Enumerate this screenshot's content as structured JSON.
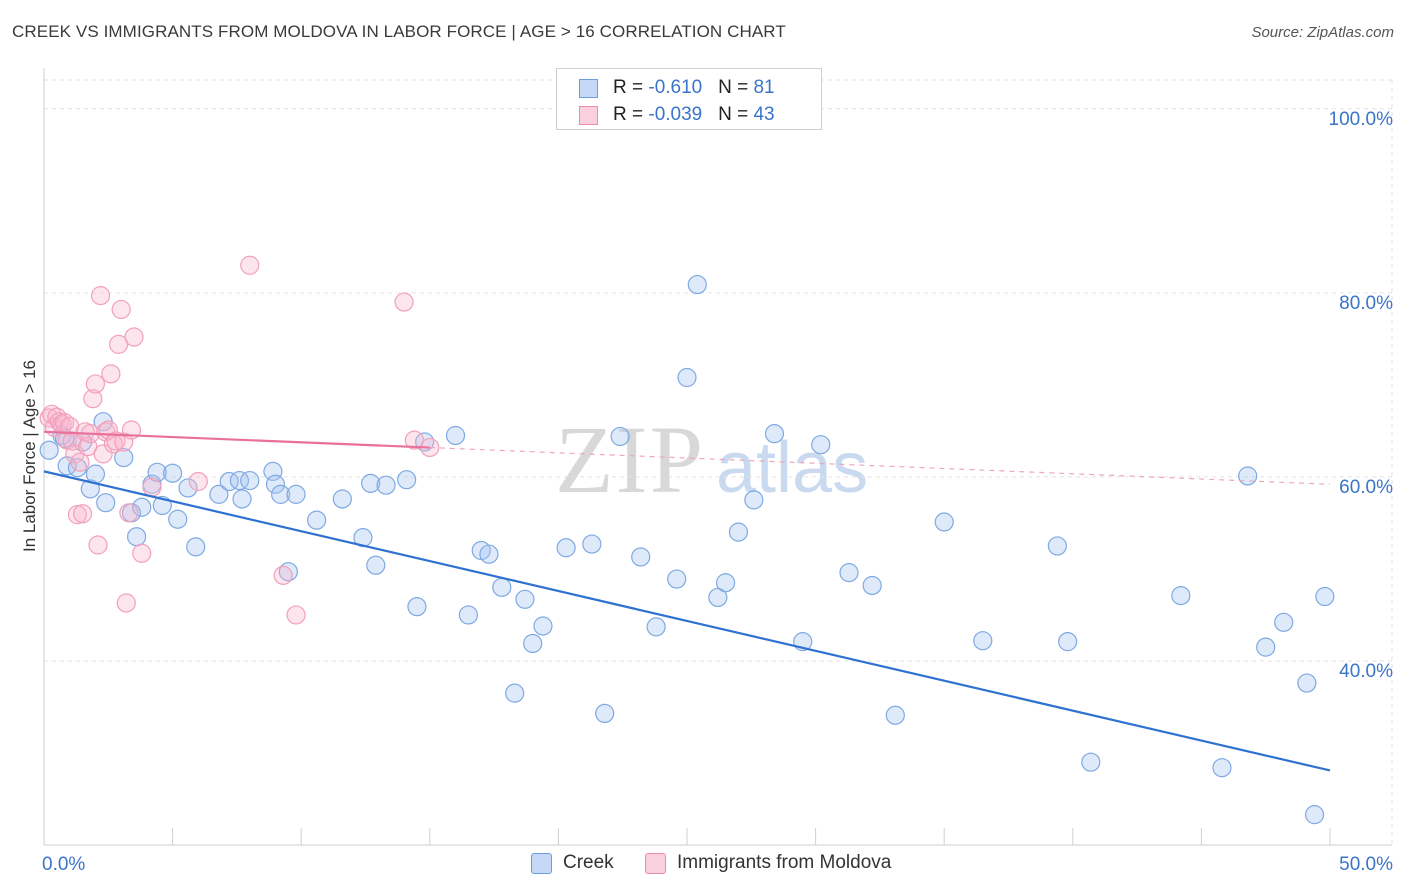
{
  "title": "CREEK VS IMMIGRANTS FROM MOLDOVA IN LABOR FORCE | AGE > 16 CORRELATION CHART",
  "source": "Source: ZipAtlas.com",
  "watermark": {
    "part1": "ZIP",
    "part2": "atlas"
  },
  "legend_top": [
    {
      "r_label": "R = ",
      "r_value": "-0.610",
      "n_label": "N = ",
      "n_value": "81",
      "color": "#6b9de0"
    },
    {
      "r_label": "R = ",
      "r_value": "-0.039",
      "n_label": "N = ",
      "n_value": "43",
      "color": "#f08aab"
    }
  ],
  "legend_bottom": [
    {
      "label": "Creek",
      "color": "#6b9de0"
    },
    {
      "label": "Immigrants from Moldova",
      "color": "#f08aab"
    }
  ],
  "chart_data": {
    "type": "scatter",
    "title": "CREEK VS IMMIGRANTS FROM MOLDOVA IN LABOR FORCE | AGE > 16 CORRELATION CHART",
    "xlabel": "",
    "ylabel": "In Labor Force | Age > 16",
    "xlim": [
      0,
      50
    ],
    "ylim": [
      20,
      104
    ],
    "x_tick_labels": [
      "0.0%",
      "50.0%"
    ],
    "y_ticks": [
      40,
      60,
      80,
      100
    ],
    "y_tick_labels": [
      "40.0%",
      "60.0%",
      "80.0%",
      "100.0%"
    ],
    "grid": true,
    "legend_placement": "top-center and bottom",
    "series": [
      {
        "name": "Creek",
        "color": "#6b9de0",
        "trend": {
          "x": [
            0,
            50
          ],
          "y": [
            60.6,
            28.1
          ],
          "dashed_from": null
        },
        "points": [
          [
            0.2,
            62.9
          ],
          [
            0.7,
            64.5
          ],
          [
            0.8,
            64.2
          ],
          [
            0.9,
            61.2
          ],
          [
            1.3,
            61.0
          ],
          [
            1.5,
            63.8
          ],
          [
            1.8,
            58.7
          ],
          [
            2.0,
            60.3
          ],
          [
            2.3,
            66.0
          ],
          [
            2.4,
            57.2
          ],
          [
            3.1,
            62.1
          ],
          [
            3.4,
            56.1
          ],
          [
            3.6,
            53.5
          ],
          [
            3.8,
            56.7
          ],
          [
            4.2,
            59.2
          ],
          [
            4.4,
            60.5
          ],
          [
            4.6,
            56.9
          ],
          [
            5.0,
            60.4
          ],
          [
            5.2,
            55.4
          ],
          [
            5.6,
            58.8
          ],
          [
            5.9,
            52.4
          ],
          [
            6.8,
            58.1
          ],
          [
            7.2,
            59.5
          ],
          [
            7.6,
            59.6
          ],
          [
            7.7,
            57.6
          ],
          [
            8.0,
            59.6
          ],
          [
            8.9,
            60.6
          ],
          [
            9.0,
            59.2
          ],
          [
            9.2,
            58.1
          ],
          [
            9.5,
            49.7
          ],
          [
            9.8,
            58.1
          ],
          [
            10.6,
            55.3
          ],
          [
            11.6,
            57.6
          ],
          [
            12.4,
            53.4
          ],
          [
            12.7,
            59.3
          ],
          [
            12.9,
            50.4
          ],
          [
            13.3,
            59.1
          ],
          [
            14.1,
            59.7
          ],
          [
            14.5,
            45.9
          ],
          [
            14.8,
            63.8
          ],
          [
            16.0,
            64.5
          ],
          [
            16.5,
            45.0
          ],
          [
            17.0,
            52.0
          ],
          [
            17.3,
            51.6
          ],
          [
            17.8,
            48.0
          ],
          [
            18.3,
            36.5
          ],
          [
            18.7,
            46.7
          ],
          [
            19.0,
            41.9
          ],
          [
            19.4,
            43.8
          ],
          [
            20.3,
            52.3
          ],
          [
            21.3,
            52.7
          ],
          [
            21.8,
            34.3
          ],
          [
            22.4,
            64.4
          ],
          [
            23.2,
            51.3
          ],
          [
            23.8,
            43.7
          ],
          [
            24.6,
            48.9
          ],
          [
            25.0,
            70.8
          ],
          [
            25.4,
            80.9
          ],
          [
            26.2,
            46.9
          ],
          [
            26.5,
            48.5
          ],
          [
            27.0,
            54.0
          ],
          [
            27.6,
            57.5
          ],
          [
            28.4,
            64.7
          ],
          [
            29.5,
            42.1
          ],
          [
            30.2,
            63.5
          ],
          [
            31.3,
            49.6
          ],
          [
            32.2,
            48.2
          ],
          [
            33.1,
            34.1
          ],
          [
            35.0,
            55.1
          ],
          [
            36.5,
            42.2
          ],
          [
            39.4,
            52.5
          ],
          [
            39.8,
            42.1
          ],
          [
            40.7,
            29.0
          ],
          [
            44.2,
            47.1
          ],
          [
            45.8,
            28.4
          ],
          [
            46.8,
            60.1
          ],
          [
            47.5,
            41.5
          ],
          [
            48.2,
            44.2
          ],
          [
            49.1,
            37.6
          ],
          [
            49.4,
            23.3
          ],
          [
            49.8,
            47.0
          ]
        ]
      },
      {
        "name": "Immigrants from Moldova",
        "color": "#f08aab",
        "trend": {
          "x": [
            0,
            50
          ],
          "y": [
            64.9,
            59.2
          ],
          "dashed_from": 15
        },
        "points": [
          [
            0.2,
            66.4
          ],
          [
            0.3,
            66.8
          ],
          [
            0.4,
            65.4
          ],
          [
            0.5,
            66.5
          ],
          [
            0.6,
            66.0
          ],
          [
            0.7,
            65.7
          ],
          [
            0.8,
            65.9
          ],
          [
            0.9,
            64.0
          ],
          [
            1.0,
            65.5
          ],
          [
            1.1,
            63.9
          ],
          [
            1.2,
            62.5
          ],
          [
            1.3,
            55.9
          ],
          [
            1.4,
            61.6
          ],
          [
            1.5,
            56.0
          ],
          [
            1.6,
            64.9
          ],
          [
            1.7,
            63.3
          ],
          [
            1.8,
            64.7
          ],
          [
            1.9,
            68.5
          ],
          [
            2.0,
            70.1
          ],
          [
            2.1,
            52.6
          ],
          [
            2.2,
            79.7
          ],
          [
            2.3,
            62.5
          ],
          [
            2.4,
            64.9
          ],
          [
            2.5,
            65.1
          ],
          [
            2.6,
            71.2
          ],
          [
            2.7,
            63.6
          ],
          [
            2.8,
            63.9
          ],
          [
            2.9,
            74.4
          ],
          [
            3.0,
            78.2
          ],
          [
            3.1,
            63.8
          ],
          [
            3.2,
            46.3
          ],
          [
            3.3,
            56.1
          ],
          [
            3.4,
            65.1
          ],
          [
            3.5,
            75.2
          ],
          [
            3.8,
            51.7
          ],
          [
            4.2,
            58.9
          ],
          [
            6.0,
            59.5
          ],
          [
            8.0,
            83.0
          ],
          [
            9.3,
            49.3
          ],
          [
            9.8,
            45.0
          ],
          [
            14.0,
            79.0
          ],
          [
            14.4,
            64.0
          ],
          [
            15.0,
            63.2
          ]
        ]
      }
    ]
  }
}
